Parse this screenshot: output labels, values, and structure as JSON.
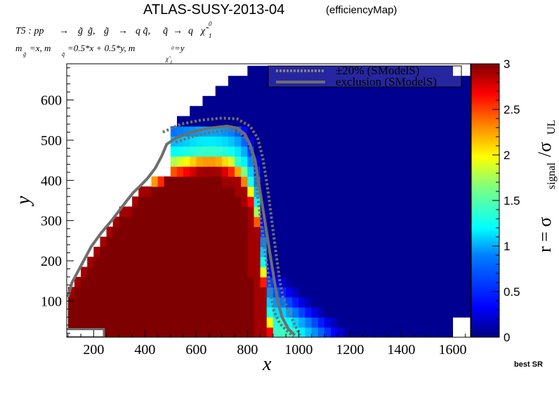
{
  "chart_data": {
    "type": "heatmap",
    "title": "ATLAS-SUSY-2013-04",
    "title_suffix": "(efficiencyMap)",
    "process": {
      "label": "T5 : pp",
      "g1": "g̃",
      "g2": "g̃,",
      "g3": "g̃",
      "qq": "q q̃,",
      "q4": "q̃",
      "q5": "q",
      "chi": "χ̃",
      "chi_sup": "0",
      "chi_sub": "1",
      "arrow": "→"
    },
    "mass_relations": {
      "m": "m",
      "sub_g": "g̃",
      "eq1": "=x, m",
      "sub_q": "q̃",
      "eq2": "=0.5*x + 0.5*y, m",
      "sub_chi": "χ̃",
      "sup_chi": "0",
      "sub_1": "1",
      "eq3": "=y"
    },
    "xlabel": "x",
    "ylabel": "y",
    "xlim": [
      95,
      1670
    ],
    "ylim": [
      10,
      690
    ],
    "xticks": [
      200,
      400,
      600,
      800,
      1000,
      1200,
      1400,
      1600
    ],
    "yticks": [
      100,
      200,
      300,
      400,
      500,
      600
    ],
    "zlabel": {
      "r": "r = σ",
      "signal": "signal",
      "slash": "/σ",
      "ul": "UL"
    },
    "zlim": [
      0,
      3
    ],
    "zticks": [
      "0",
      "0.5",
      "1",
      "1.5",
      "2",
      "2.5",
      "3"
    ],
    "legend": {
      "position": "top-right",
      "items": [
        {
          "label": "±20% (SModelS)",
          "style": "dotted"
        },
        {
          "label": "exclusion (SModelS)",
          "style": "solid"
        }
      ]
    },
    "annotation": "best SR",
    "contour_color": "#6e6e6e",
    "colormap": [
      "#00007f",
      "#0000ff",
      "#007fff",
      "#00ffff",
      "#7fff7f",
      "#ffff00",
      "#ff7f00",
      "#ff0000",
      "#7f0000"
    ],
    "exclusion_contour": [
      [
        100,
        110
      ],
      [
        115,
        145
      ],
      [
        140,
        175
      ],
      [
        165,
        205
      ],
      [
        190,
        235
      ],
      [
        230,
        270
      ],
      [
        270,
        300
      ],
      [
        300,
        325
      ],
      [
        330,
        350
      ],
      [
        355,
        370
      ],
      [
        380,
        385
      ],
      [
        410,
        405
      ],
      [
        440,
        430
      ],
      [
        465,
        460
      ],
      [
        485,
        490
      ],
      [
        520,
        505
      ],
      [
        580,
        520
      ],
      [
        650,
        530
      ],
      [
        720,
        535
      ],
      [
        760,
        530
      ],
      [
        790,
        515
      ],
      [
        810,
        490
      ],
      [
        830,
        450
      ],
      [
        845,
        390
      ],
      [
        860,
        330
      ],
      [
        875,
        270
      ],
      [
        890,
        210
      ],
      [
        905,
        150
      ],
      [
        918,
        100
      ],
      [
        935,
        60
      ],
      [
        960,
        30
      ],
      [
        985,
        15
      ]
    ],
    "plus20_contour": [
      [
        520,
        495
      ],
      [
        590,
        510
      ],
      [
        660,
        520
      ],
      [
        730,
        525
      ],
      [
        770,
        520
      ],
      [
        800,
        500
      ],
      [
        818,
        470
      ],
      [
        830,
        420
      ],
      [
        840,
        360
      ],
      [
        852,
        300
      ],
      [
        865,
        240
      ],
      [
        878,
        180
      ],
      [
        890,
        120
      ],
      [
        903,
        75
      ],
      [
        925,
        45
      ],
      [
        955,
        25
      ],
      [
        980,
        12
      ]
    ],
    "minus20_contour": [
      [
        470,
        520
      ],
      [
        540,
        540
      ],
      [
        620,
        550
      ],
      [
        700,
        555
      ],
      [
        760,
        553
      ],
      [
        810,
        535
      ],
      [
        840,
        505
      ],
      [
        860,
        455
      ],
      [
        875,
        395
      ],
      [
        888,
        335
      ],
      [
        900,
        275
      ],
      [
        912,
        215
      ],
      [
        925,
        155
      ],
      [
        938,
        110
      ],
      [
        960,
        75
      ],
      [
        985,
        40
      ],
      [
        1005,
        15
      ]
    ],
    "excluded_region": [
      [
        100,
        108
      ],
      [
        150,
        152
      ],
      [
        200,
        198
      ],
      [
        250,
        245
      ],
      [
        300,
        295
      ],
      [
        350,
        330
      ],
      [
        400,
        365
      ],
      [
        440,
        388
      ],
      [
        480,
        398
      ],
      [
        520,
        405
      ],
      [
        560,
        410
      ],
      [
        600,
        410
      ],
      [
        650,
        408
      ],
      [
        700,
        400
      ],
      [
        740,
        385
      ],
      [
        770,
        360
      ],
      [
        790,
        320
      ],
      [
        800,
        270
      ],
      [
        810,
        210
      ],
      [
        815,
        120
      ],
      [
        820,
        25
      ]
    ],
    "transition_band": [
      [
        440,
        420
      ],
      [
        500,
        450
      ],
      [
        560,
        460
      ],
      [
        620,
        470
      ],
      [
        680,
        470
      ],
      [
        730,
        460
      ],
      [
        770,
        440
      ],
      [
        800,
        410
      ],
      [
        820,
        370
      ],
      [
        840,
        320
      ],
      [
        850,
        260
      ],
      [
        860,
        200
      ],
      [
        870,
        130
      ],
      [
        880,
        80
      ],
      [
        895,
        40
      ]
    ],
    "upper_edge": [
      [
        490,
        530
      ],
      [
        560,
        570
      ],
      [
        620,
        600
      ],
      [
        660,
        620
      ],
      [
        700,
        640
      ],
      [
        760,
        660
      ],
      [
        820,
        680
      ],
      [
        900,
        690
      ],
      [
        1000,
        690
      ],
      [
        1600,
        690
      ],
      [
        1620,
        650
      ]
    ],
    "lower_right_edge": [
      [
        1600,
        60
      ],
      [
        1670,
        60
      ]
    ],
    "low_x_strip": [
      [
        95,
        10
      ],
      [
        240,
        10
      ],
      [
        240,
        30
      ],
      [
        95,
        30
      ]
    ]
  }
}
